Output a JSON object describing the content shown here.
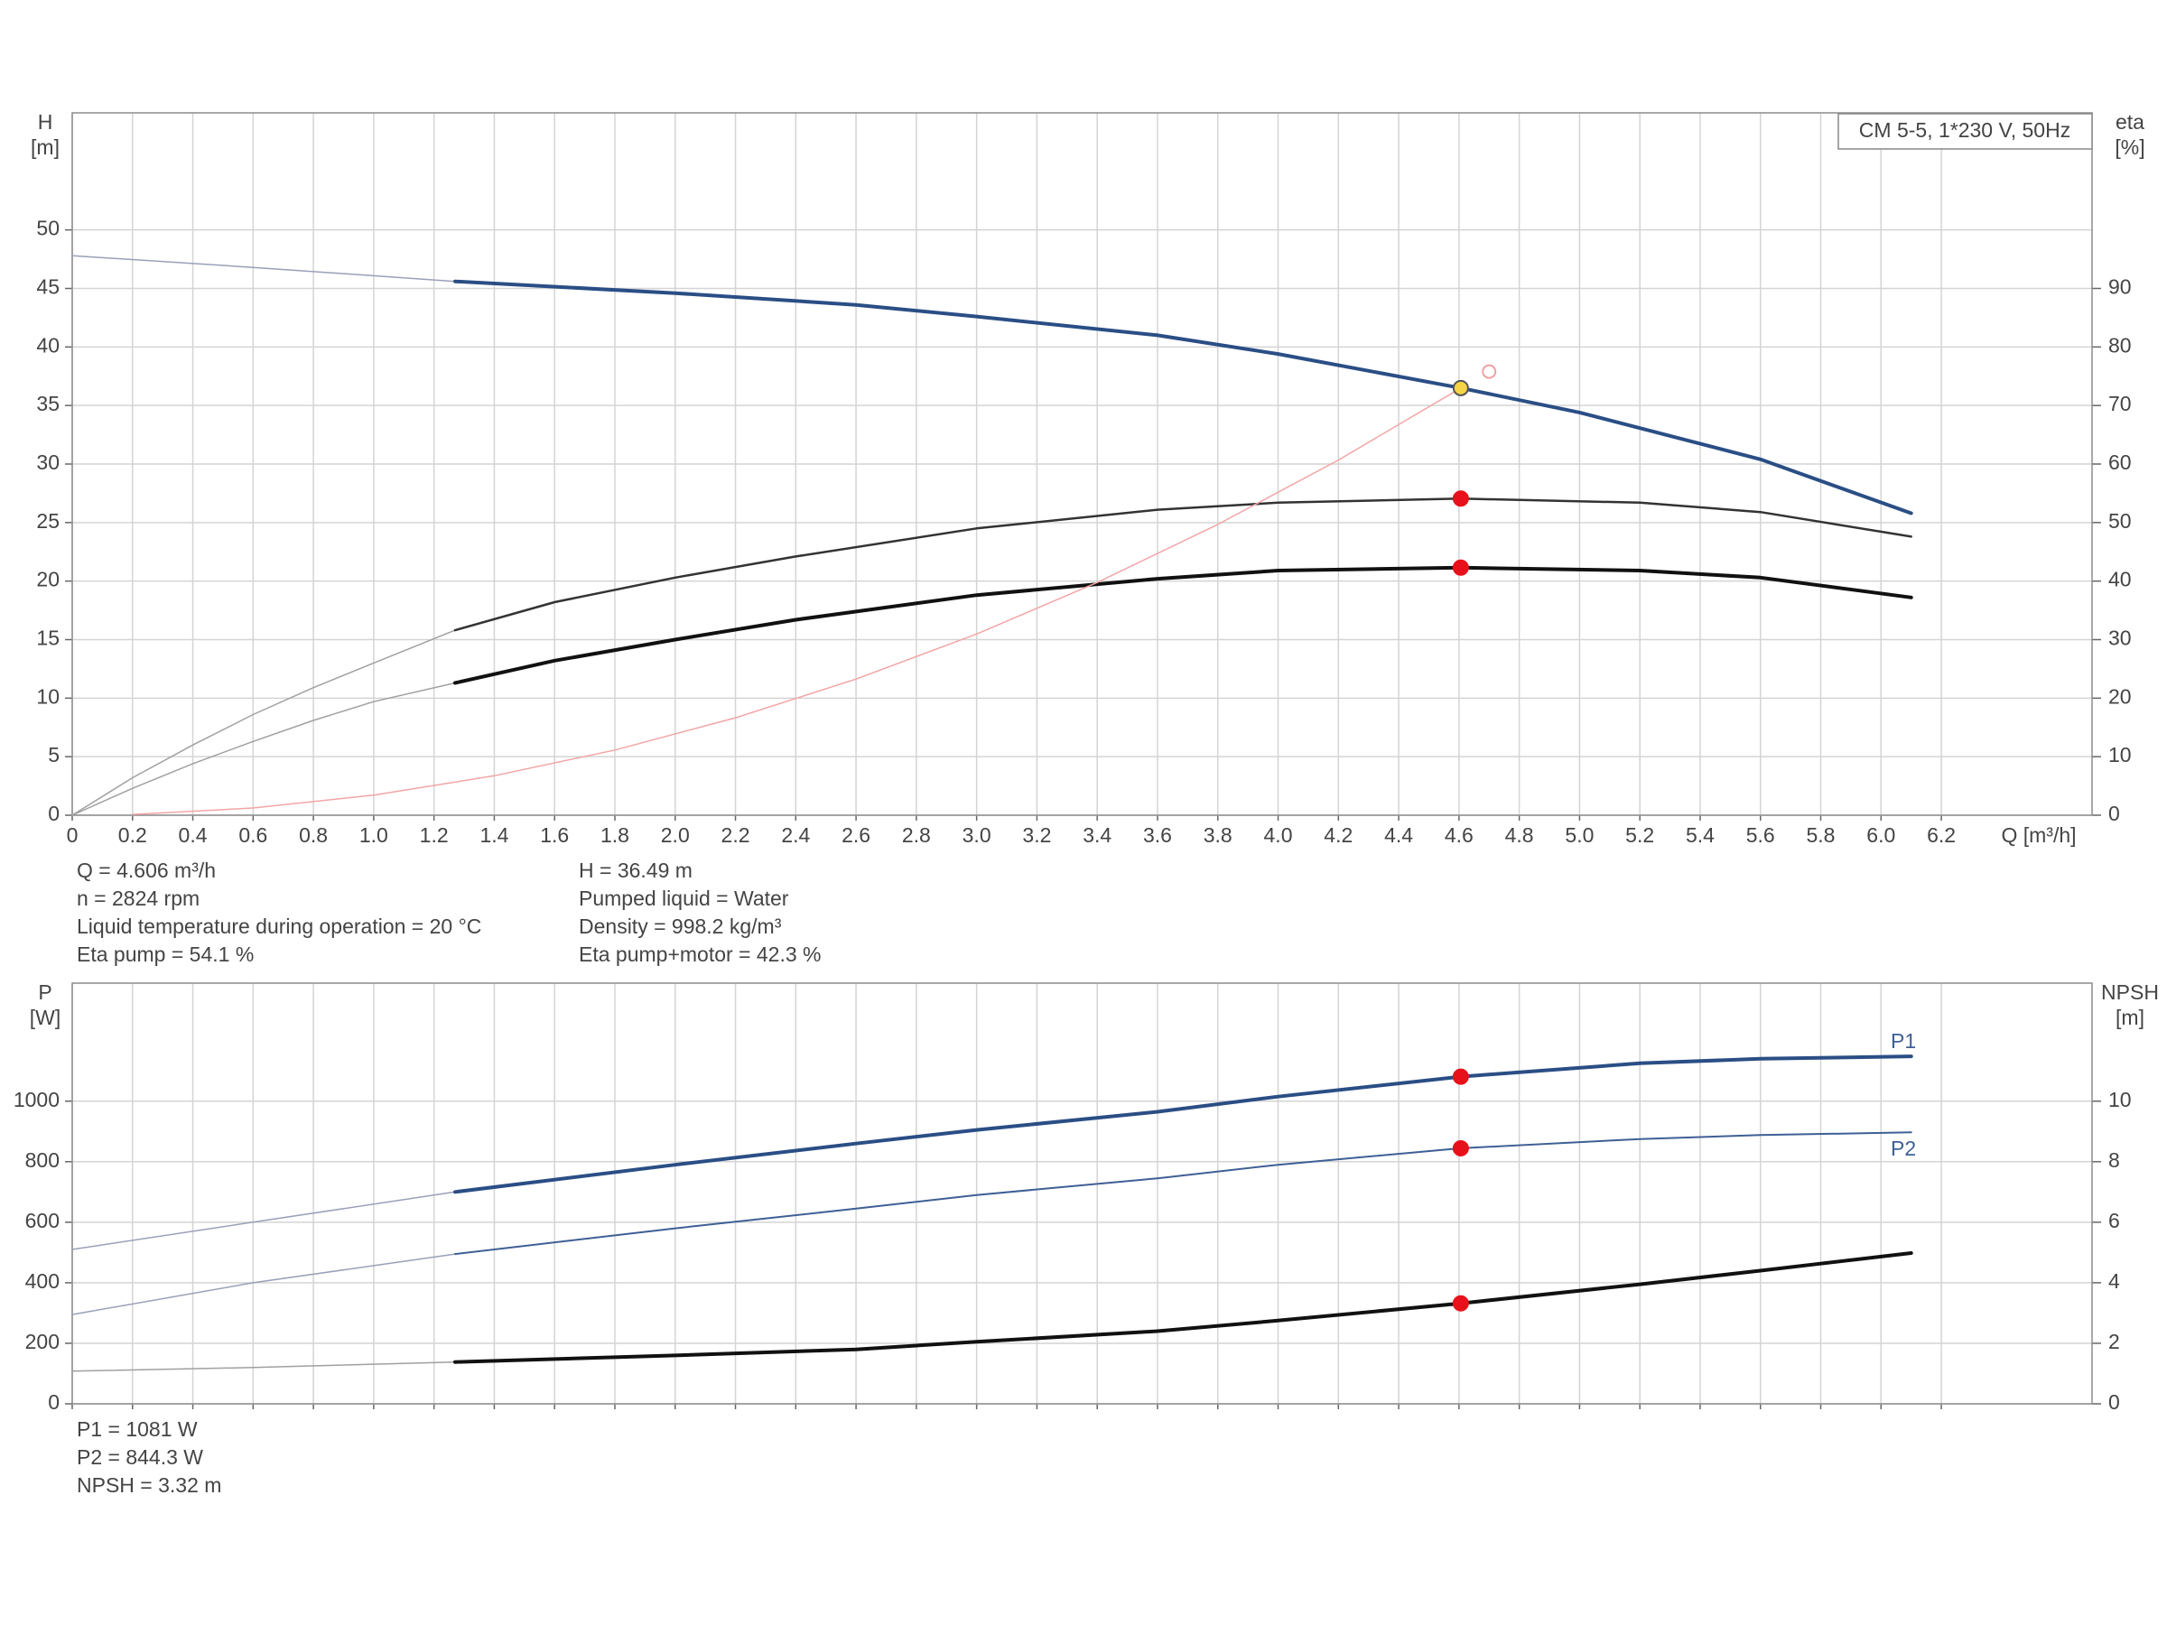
{
  "chart_data": [
    {
      "type": "line",
      "title": "CM 5-5, 1*230 V, 50Hz",
      "x_label": "Q [m³/h]",
      "y_label": "H",
      "y_unit": "[m]",
      "y2_label": "eta",
      "y2_unit": "[%]",
      "xlim": [
        0,
        6.7
      ],
      "xticks": [
        0,
        0.2,
        0.4,
        0.6,
        0.8,
        {
          "value": 1,
          "label": "1.0"
        },
        1.2,
        1.4,
        1.6,
        1.8,
        {
          "value": 2,
          "label": "2.0"
        },
        2.2,
        2.4,
        2.6,
        2.8,
        {
          "value": 3,
          "label": "3.0"
        },
        3.2,
        3.4,
        3.6,
        3.8,
        {
          "value": 4,
          "label": "4.0"
        },
        4.2,
        4.4,
        4.6,
        4.8,
        {
          "value": 5,
          "label": "5.0"
        },
        5.2,
        5.4,
        5.6,
        5.8,
        {
          "value": 6,
          "label": "6.0"
        },
        6.2
      ],
      "show_x_tick_labels": true,
      "ylim": [
        0,
        60
      ],
      "yticks": [
        0,
        5,
        10,
        15,
        20,
        25,
        30,
        35,
        40,
        45,
        50
      ],
      "y2lim": [
        0,
        120
      ],
      "y2ticks": [
        0,
        10,
        20,
        30,
        40,
        50,
        60,
        70,
        80,
        90
      ],
      "grid": true,
      "series": [
        {
          "color": "#9aa0b8",
          "width": 1.5,
          "x": [
            0,
            0.6,
            1.27
          ],
          "values": [
            47.8,
            46.8,
            45.6
          ]
        },
        {
          "color": "#2a4e85",
          "width": 4,
          "x": [
            1.27,
            2,
            2.6,
            3,
            3.6,
            4,
            4.606,
            5,
            5.6,
            6.1
          ],
          "values": [
            45.6,
            44.6,
            43.6,
            42.6,
            41,
            39.4,
            36.49,
            34.4,
            30.4,
            25.8
          ]
        },
        {
          "color": "#a0a0a0",
          "width": 1.5,
          "axis": "y2",
          "x": [
            0,
            0.2,
            0.4,
            0.6,
            0.8,
            1.0,
            1.27
          ],
          "values": [
            0,
            6.4,
            12,
            17.2,
            21.8,
            26,
            31.6
          ]
        },
        {
          "color": "#333333",
          "width": 2.5,
          "axis": "y2",
          "x": [
            1.27,
            1.6,
            2,
            2.4,
            3,
            3.6,
            4,
            4.606,
            5.2,
            5.6,
            6.1
          ],
          "values": [
            31.6,
            36.4,
            40.6,
            44.2,
            49,
            52.2,
            53.4,
            54.1,
            53.4,
            51.8,
            47.6
          ]
        },
        {
          "color": "#a0a0a0",
          "width": 1.5,
          "axis": "y2",
          "x": [
            0,
            0.2,
            0.4,
            0.6,
            0.8,
            1.0,
            1.27
          ],
          "values": [
            0,
            4.6,
            8.8,
            12.6,
            16.2,
            19.4,
            22.6
          ]
        },
        {
          "color": "#111111",
          "width": 4,
          "axis": "y2",
          "x": [
            1.27,
            1.6,
            2,
            2.4,
            3,
            3.6,
            4,
            4.606,
            5.2,
            5.6,
            6.1
          ],
          "values": [
            22.6,
            26.4,
            30,
            33.4,
            37.6,
            40.4,
            41.8,
            42.3,
            41.8,
            40.6,
            37.2
          ]
        },
        {
          "color": "#f2a5a5",
          "width": 1.5,
          "x": [
            0.2,
            0.6,
            1,
            1.4,
            1.8,
            2.2,
            2.6,
            3,
            3.4,
            3.8,
            4.2,
            4.606
          ],
          "values": [
            0.069,
            0.62,
            1.72,
            3.37,
            5.57,
            8.32,
            11.63,
            15.48,
            19.88,
            24.84,
            30.34,
            36.49
          ]
        }
      ],
      "points": [
        {
          "x": 4.606,
          "y": 36.49,
          "color": "#f5d547"
        },
        {
          "x": 4.606,
          "y": 54.1,
          "color": "#e8101a",
          "axis": "y2"
        },
        {
          "x": 4.606,
          "y": 42.3,
          "color": "#e8101a",
          "axis": "y2"
        },
        {
          "x": 4.7,
          "y": 37.9,
          "color": "#f0a0a0",
          "hollow": true
        }
      ],
      "notes": [
        [
          "Q = 4.606 m³/h",
          "n = 2824 rpm",
          "Liquid temperature during operation = 20 °C",
          "Eta pump = 54.1 %"
        ],
        [
          "H = 36.49 m",
          "Pumped liquid = Water",
          "Density = 998.2 kg/m³",
          "Eta pump+motor = 42.3 %"
        ]
      ]
    },
    {
      "type": "line",
      "y_label": "P",
      "y_unit": "[W]",
      "y2_label": "NPSH",
      "y2_unit": "[m]",
      "xlim": [
        0,
        6.7
      ],
      "xticks": [
        0,
        0.2,
        0.4,
        0.6,
        0.8,
        1,
        1.2,
        1.4,
        1.6,
        1.8,
        2,
        2.2,
        2.4,
        2.6,
        2.8,
        3,
        3.2,
        3.4,
        3.6,
        3.8,
        4,
        4.2,
        4.4,
        4.6,
        4.8,
        5,
        5.2,
        5.4,
        5.6,
        5.8,
        6,
        6.2
      ],
      "show_x_tick_labels": false,
      "ylim": [
        0,
        1390
      ],
      "yticks": [
        0,
        200,
        400,
        600,
        800,
        1000
      ],
      "y2lim": [
        0,
        13.9
      ],
      "y2ticks": [
        0,
        2,
        4,
        6,
        8,
        10
      ],
      "grid": true,
      "series": [
        {
          "color": "#9aa0b8",
          "width": 1.5,
          "x": [
            0,
            0.6,
            1.27
          ],
          "values": [
            510,
            600,
            700
          ]
        },
        {
          "color": "#2a4e85",
          "width": 4,
          "x": [
            1.27,
            2,
            2.6,
            3,
            3.6,
            4,
            4.606,
            5.2,
            5.6,
            6.1
          ],
          "values": [
            700,
            790,
            860,
            905,
            965,
            1015,
            1081,
            1125,
            1140,
            1148
          ]
        },
        {
          "color": "#9aa0b8",
          "width": 1.5,
          "x": [
            0,
            0.6,
            1.27
          ],
          "values": [
            295,
            400,
            495
          ]
        },
        {
          "color": "#3f5f95",
          "width": 2,
          "x": [
            1.27,
            2,
            2.6,
            3,
            3.6,
            4,
            4.606,
            5.2,
            5.6,
            6.1
          ],
          "values": [
            495,
            580,
            645,
            690,
            745,
            790,
            844.3,
            875,
            888,
            897
          ]
        },
        {
          "color": "#a0a0a0",
          "width": 1.5,
          "axis": "y2",
          "x": [
            0,
            0.6,
            1.27
          ],
          "values": [
            1.08,
            1.2,
            1.38
          ]
        },
        {
          "color": "#111111",
          "width": 4,
          "axis": "y2",
          "x": [
            1.27,
            2,
            2.6,
            3,
            3.6,
            4,
            4.606,
            5.2,
            5.6,
            6.1
          ],
          "values": [
            1.38,
            1.6,
            1.8,
            2.05,
            2.4,
            2.75,
            3.32,
            3.95,
            4.4,
            4.98
          ]
        }
      ],
      "points": [
        {
          "x": 4.606,
          "y": 1081,
          "color": "#e8101a"
        },
        {
          "x": 4.606,
          "y": 844.3,
          "color": "#e8101a"
        },
        {
          "x": 4.606,
          "y": 3.32,
          "color": "#e8101a",
          "axis": "y2"
        }
      ],
      "annotations": [
        {
          "text": "P1",
          "color": "#3f5f95"
        },
        {
          "text": "P2",
          "color": "#3f5f95"
        }
      ],
      "notes": [
        [
          "P1 = 1081 W",
          "P2 = 844.3 W",
          "NPSH = 3.32 m"
        ]
      ]
    }
  ]
}
